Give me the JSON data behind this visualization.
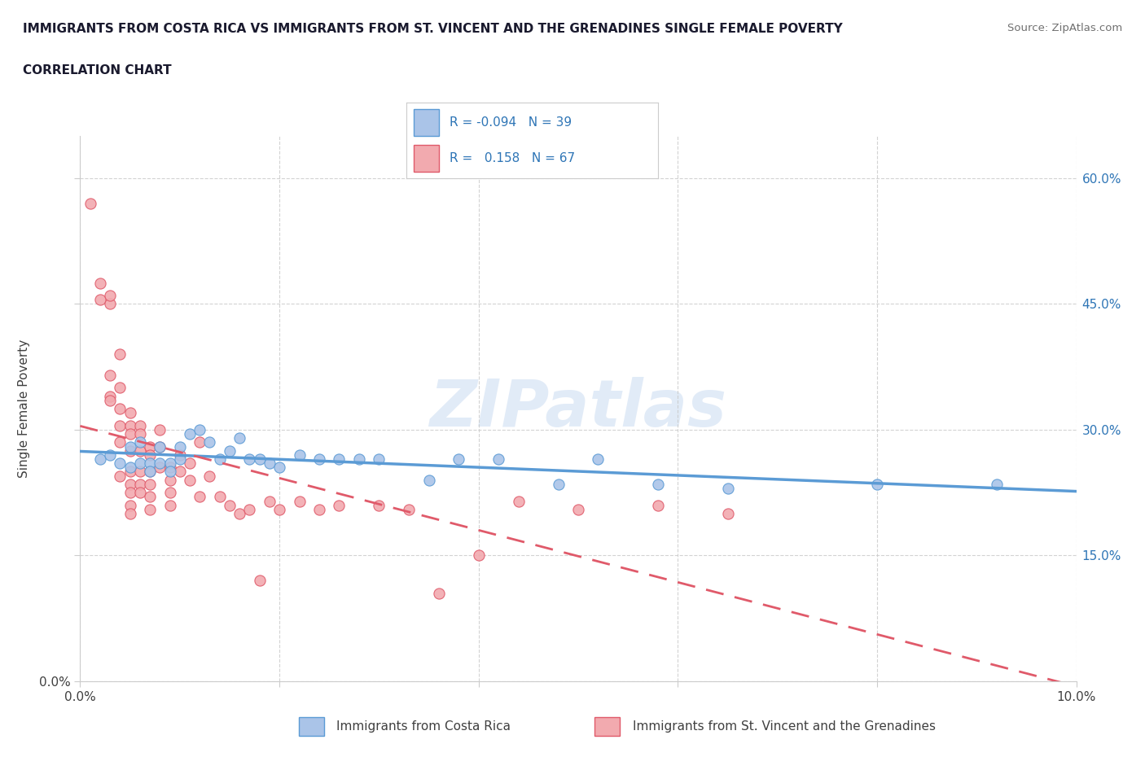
{
  "title_line1": "IMMIGRANTS FROM COSTA RICA VS IMMIGRANTS FROM ST. VINCENT AND THE GRENADINES SINGLE FEMALE POVERTY",
  "title_line2": "CORRELATION CHART",
  "source": "Source: ZipAtlas.com",
  "ylabel": "Single Female Poverty",
  "watermark": "ZIPatlas",
  "xlim": [
    0.0,
    0.1
  ],
  "ylim": [
    0.0,
    0.65
  ],
  "color_blue": "#aac4e8",
  "color_pink": "#f2aaaf",
  "color_blue_line": "#5b9bd5",
  "color_pink_line": "#e05a6a",
  "color_blue_dark": "#2e75b6",
  "color_text": "#404040",
  "color_grid": "#c8c8c8",
  "background_color": "#ffffff",
  "costa_rica_x": [
    0.002,
    0.003,
    0.004,
    0.005,
    0.005,
    0.006,
    0.006,
    0.007,
    0.007,
    0.008,
    0.008,
    0.009,
    0.009,
    0.01,
    0.01,
    0.011,
    0.012,
    0.013,
    0.014,
    0.015,
    0.016,
    0.017,
    0.018,
    0.019,
    0.02,
    0.022,
    0.024,
    0.026,
    0.028,
    0.03,
    0.035,
    0.038,
    0.042,
    0.048,
    0.052,
    0.058,
    0.065,
    0.08,
    0.092
  ],
  "costa_rica_y": [
    0.265,
    0.27,
    0.26,
    0.255,
    0.28,
    0.26,
    0.285,
    0.26,
    0.25,
    0.26,
    0.28,
    0.26,
    0.25,
    0.265,
    0.28,
    0.295,
    0.3,
    0.285,
    0.265,
    0.275,
    0.29,
    0.265,
    0.265,
    0.26,
    0.255,
    0.27,
    0.265,
    0.265,
    0.265,
    0.265,
    0.24,
    0.265,
    0.265,
    0.235,
    0.265,
    0.235,
    0.23,
    0.235,
    0.235
  ],
  "svg_x": [
    0.001,
    0.002,
    0.002,
    0.003,
    0.003,
    0.003,
    0.003,
    0.003,
    0.004,
    0.004,
    0.004,
    0.004,
    0.004,
    0.004,
    0.005,
    0.005,
    0.005,
    0.005,
    0.005,
    0.005,
    0.005,
    0.005,
    0.005,
    0.006,
    0.006,
    0.006,
    0.006,
    0.006,
    0.006,
    0.007,
    0.007,
    0.007,
    0.007,
    0.007,
    0.007,
    0.008,
    0.008,
    0.008,
    0.009,
    0.009,
    0.009,
    0.009,
    0.01,
    0.01,
    0.011,
    0.011,
    0.012,
    0.012,
    0.013,
    0.014,
    0.015,
    0.016,
    0.017,
    0.018,
    0.019,
    0.02,
    0.022,
    0.024,
    0.026,
    0.03,
    0.033,
    0.036,
    0.04,
    0.044,
    0.05,
    0.058,
    0.065
  ],
  "svg_y": [
    0.57,
    0.455,
    0.475,
    0.45,
    0.46,
    0.365,
    0.34,
    0.335,
    0.39,
    0.35,
    0.325,
    0.305,
    0.285,
    0.245,
    0.32,
    0.305,
    0.295,
    0.275,
    0.25,
    0.235,
    0.225,
    0.21,
    0.2,
    0.305,
    0.295,
    0.275,
    0.25,
    0.235,
    0.225,
    0.28,
    0.27,
    0.25,
    0.235,
    0.22,
    0.205,
    0.3,
    0.28,
    0.255,
    0.255,
    0.24,
    0.225,
    0.21,
    0.27,
    0.25,
    0.26,
    0.24,
    0.285,
    0.22,
    0.245,
    0.22,
    0.21,
    0.2,
    0.205,
    0.12,
    0.215,
    0.205,
    0.215,
    0.205,
    0.21,
    0.21,
    0.205,
    0.105,
    0.15,
    0.215,
    0.205,
    0.21,
    0.2
  ]
}
